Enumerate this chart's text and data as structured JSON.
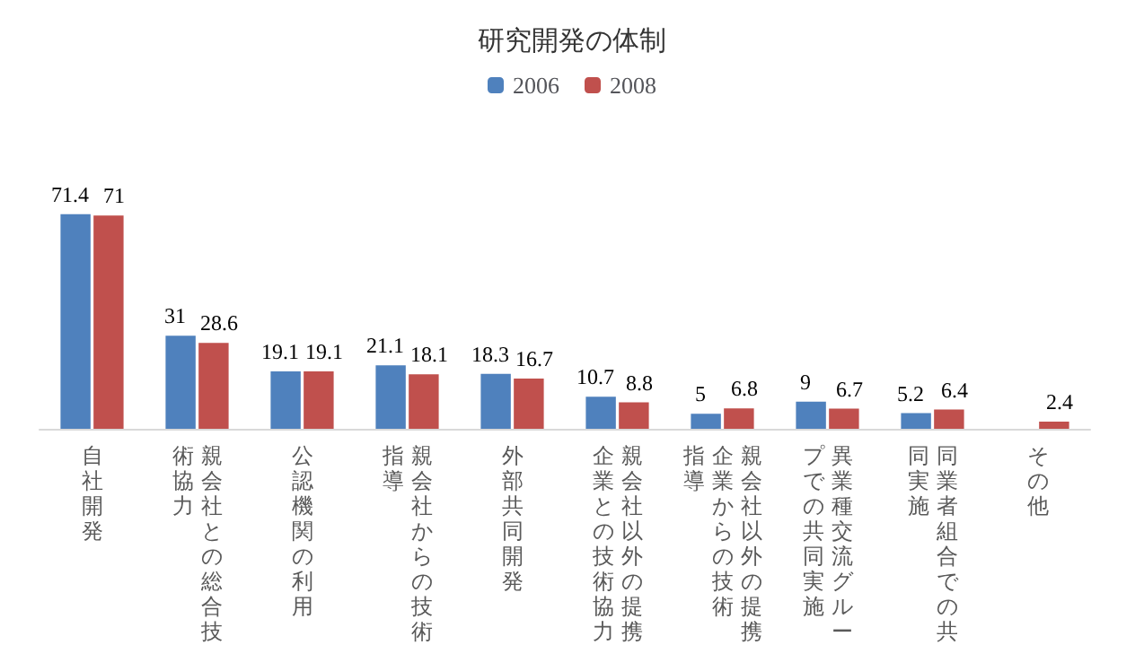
{
  "chart_data": {
    "type": "bar",
    "title": "研究開発の体制",
    "categories": [
      "自社開発",
      "親会社との総合技術協力",
      "公認機関の利用",
      "親会社からの技術指導",
      "外部共同開発",
      "親会社以外の提携企業との技術協力",
      "親会社以外の提携企業からの技術指導",
      "異業種交流グループでの共同実施",
      "同業者組合での共同実施",
      "その他"
    ],
    "series": [
      {
        "name": "2006",
        "color": "#4f81bd",
        "values": [
          71.4,
          31,
          19.1,
          21.1,
          18.3,
          10.7,
          5,
          9,
          5.2,
          null
        ]
      },
      {
        "name": "2008",
        "color": "#c0504d",
        "values": [
          71,
          28.6,
          19.1,
          18.1,
          16.7,
          8.8,
          6.8,
          6.7,
          6.4,
          2.4
        ]
      }
    ],
    "data_labels": true,
    "legend": "top"
  }
}
